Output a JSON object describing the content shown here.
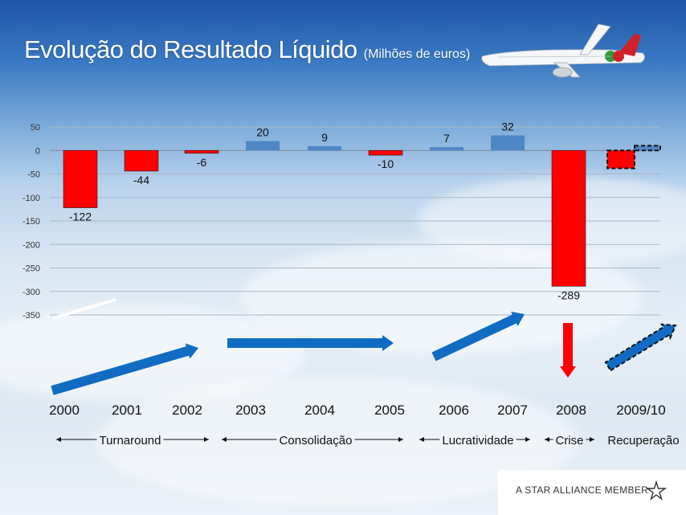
{
  "slide": {
    "title": "Evolução do Resultado Líquido",
    "subtitle": "(Milhões de euros)"
  },
  "chart_data": {
    "type": "bar",
    "categories": [
      "2000",
      "2001",
      "2002",
      "2003",
      "2004",
      "2005",
      "2006",
      "2007",
      "2008",
      "2009/10"
    ],
    "values": [
      -122,
      -44,
      -6,
      20,
      9,
      -10,
      7,
      32,
      -289,
      null
    ],
    "value_labels": [
      "-122",
      "-44",
      "-6",
      "20",
      "9",
      "-10",
      "7",
      "32",
      "-289",
      ""
    ],
    "recovery_projection": {
      "category": "2009/10",
      "negative_part": -38,
      "positive_part": 10,
      "style": "dashed"
    },
    "ylim": [
      -350,
      50
    ],
    "yticks": [
      "50",
      "0",
      "-50",
      "-100",
      "-150",
      "-200",
      "-250",
      "-300",
      "-350"
    ],
    "ytick_values": [
      50,
      0,
      -50,
      -100,
      -150,
      -200,
      -250,
      -300,
      -350
    ],
    "grid": true,
    "colors": {
      "negative": "#ff0000",
      "positive": "#4f86c6",
      "arrow": "#0f6cc2"
    },
    "phases": [
      {
        "label": "Turnaround",
        "trend": "up"
      },
      {
        "label": "Consolidação",
        "trend": "flat"
      },
      {
        "label": "Lucratividade",
        "trend": "up"
      },
      {
        "label": "Crise",
        "trend": "down"
      },
      {
        "label": "Recuperação",
        "trend": "up-dashed"
      }
    ]
  },
  "footer": {
    "text": "A STAR ALLIANCE MEMBER"
  }
}
